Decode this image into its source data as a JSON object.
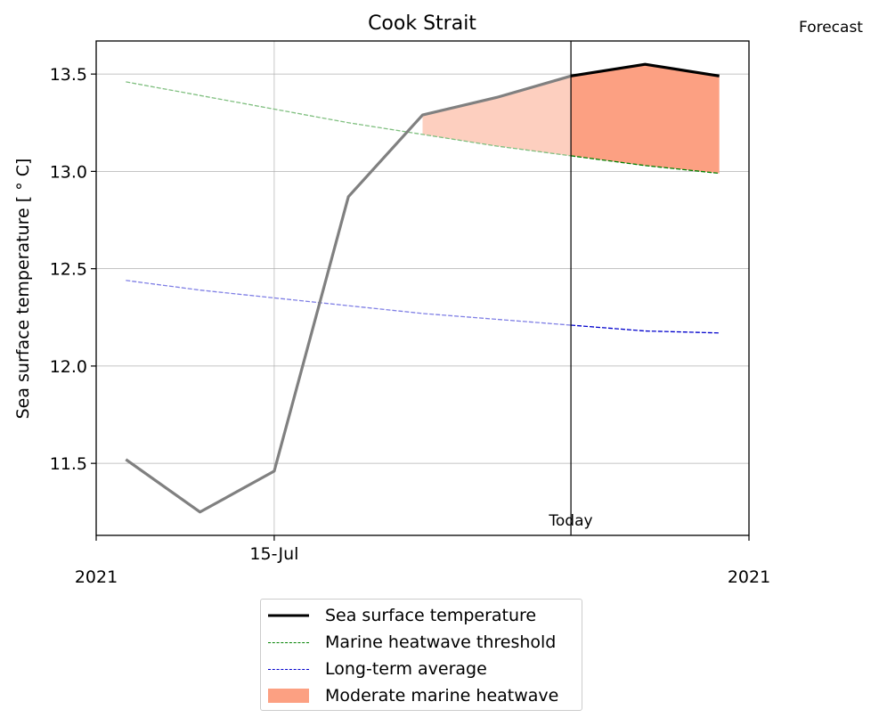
{
  "chart_data": {
    "type": "line",
    "title": "Cook Strait",
    "ylabel": "Sea surface temperature [$^\\circ$C]",
    "ylabel_display": "Sea surface temperature [ ° C]",
    "xlabel": "",
    "corner_label": "Forecast",
    "today_label": "Today",
    "ylim": [
      11.13,
      13.67
    ],
    "xlim": [
      -0.4,
      8.4
    ],
    "yticks": [
      11.5,
      12.0,
      12.5,
      13.0,
      13.5
    ],
    "ytick_labels": [
      "11.5",
      "12.0",
      "12.5",
      "13.0",
      "13.5"
    ],
    "xtick_positions": [
      -0.4,
      2.0,
      8.4
    ],
    "xtick_labels_top": [
      "",
      "15-Jul",
      ""
    ],
    "xtick_labels_bottom": [
      "2021",
      "",
      "2021"
    ],
    "x": [
      0,
      1,
      2,
      3,
      4,
      5,
      6,
      7,
      8
    ],
    "today_x": 6,
    "grid": true,
    "legend_position": "below",
    "series": [
      {
        "name": "Sea surface temperature",
        "values": [
          11.52,
          11.25,
          11.46,
          12.87,
          13.29,
          13.38,
          13.49,
          13.55,
          13.49
        ],
        "observed_until": 6,
        "color_observed": "#808080",
        "color_forecast": "#000000"
      },
      {
        "name": "Marine heatwave threshold",
        "values": [
          13.46,
          13.39,
          13.32,
          13.25,
          13.19,
          13.13,
          13.08,
          13.03,
          12.99
        ],
        "color": "#008000",
        "faded_color": "#7fbf7f"
      },
      {
        "name": "Long-term average",
        "values": [
          12.44,
          12.39,
          12.35,
          12.31,
          12.27,
          12.24,
          12.21,
          12.18,
          12.17
        ],
        "color": "#0000cc",
        "faded_color": "#7f7fe5"
      },
      {
        "name": "Moderate marine heatwave",
        "fill_between": [
          "Sea surface temperature",
          "Marine heatwave threshold"
        ],
        "fill_from_x": 4,
        "color": "#fca082",
        "faded_color": "#fdcfbf"
      }
    ]
  },
  "legend": {
    "items": [
      {
        "label": "Sea surface temperature"
      },
      {
        "label": "Marine heatwave threshold"
      },
      {
        "label": "Long-term average"
      },
      {
        "label": "Moderate marine heatwave"
      }
    ]
  }
}
